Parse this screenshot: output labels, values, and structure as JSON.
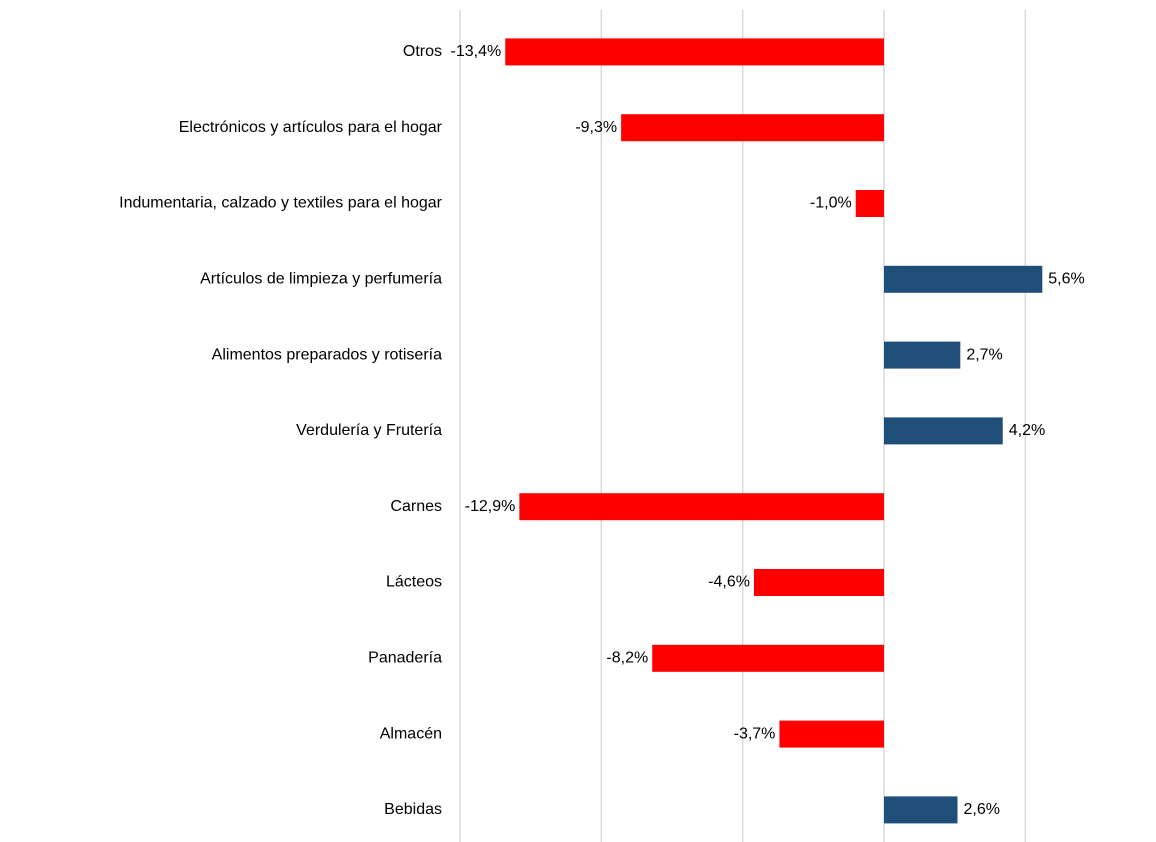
{
  "chart_data": {
    "type": "barh",
    "categories": [
      "Otros",
      "Electrónicos y artículos para el hogar",
      "Indumentaria, calzado y textiles para el hogar",
      "Artículos de limpieza y perfumería",
      "Alimentos preparados y rotisería",
      "Verdulería y Frutería",
      "Carnes",
      "Lácteos",
      "Panadería",
      "Almacén",
      "Bebidas"
    ],
    "values": [
      -13.4,
      -9.3,
      -1.0,
      5.6,
      2.7,
      4.2,
      -12.9,
      -4.6,
      -8.2,
      -3.7,
      2.6
    ],
    "value_labels": [
      "-13,4%",
      "-9,3%",
      "-1,0%",
      "5,6%",
      "2,7%",
      "4,2%",
      "-12,9%",
      "-4,6%",
      "-8,2%",
      "-3,7%",
      "2,6%"
    ],
    "colors": [
      "#ff0000",
      "#ff0000",
      "#ff0000",
      "#1f4e79",
      "#1f4e79",
      "#1f4e79",
      "#ff0000",
      "#ff0000",
      "#ff0000",
      "#ff0000",
      "#1f4e79"
    ],
    "xlim": [
      -15,
      7.5
    ],
    "xticks": [
      -15,
      -10,
      -5,
      0,
      5
    ],
    "grid": true
  }
}
